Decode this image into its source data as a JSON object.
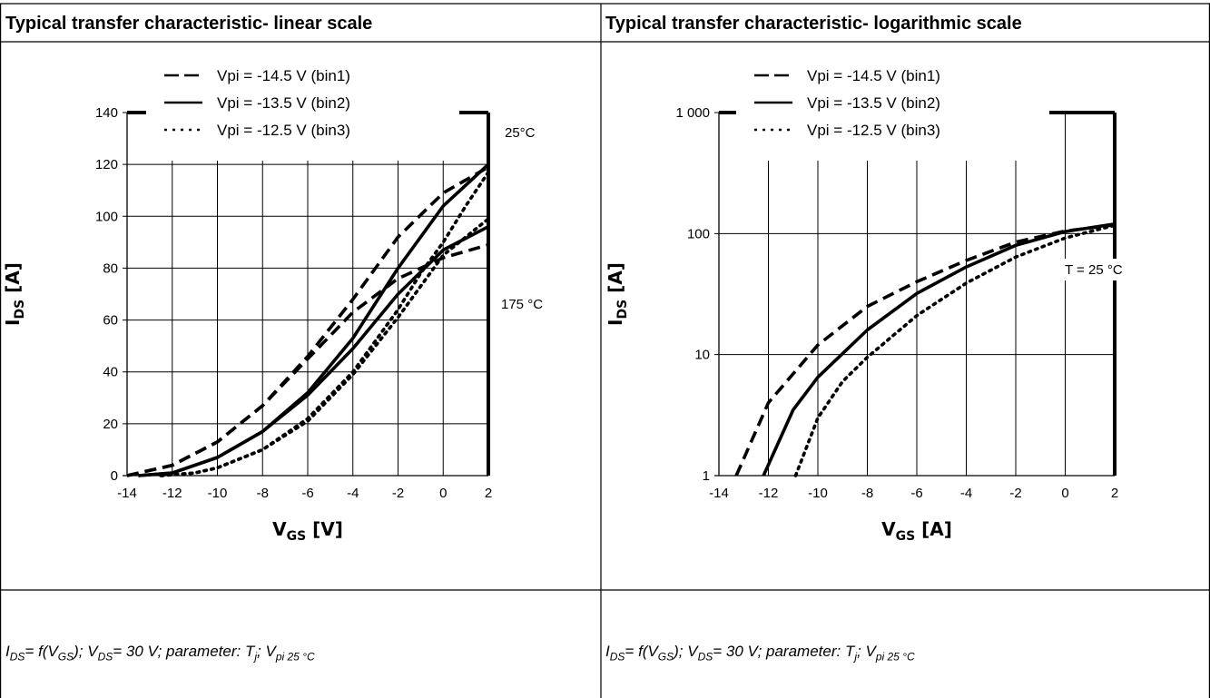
{
  "table": {
    "left_title": "Typical transfer characteristic- linear scale",
    "right_title": "Typical transfer characteristic- logarithmic scale",
    "caption": {
      "i": "I",
      "i_sub": "DS",
      "eq": "= ",
      "f": "f",
      "open": "(V",
      "gs_sub": "GS",
      "mid": "); V",
      "ds_sub": "DS",
      "tail": "= 30 V; parameter: T",
      "j_sub": "j",
      "sep": "; V",
      "vpi_sub": "pi 25 °C"
    }
  },
  "chart_data": [
    {
      "type": "line",
      "title": "Typical transfer characteristic- linear scale",
      "xlabel": "VGS [V]",
      "ylabel": "IDS [A]",
      "xlabel_parts": {
        "main": "V",
        "sub": "GS",
        "unit": " [V]"
      },
      "ylabel_parts": {
        "main": "I",
        "sub": "DS",
        "unit": " [A]"
      },
      "xlim": [
        -14,
        2
      ],
      "ylim": [
        0,
        140
      ],
      "xticks": [
        -14,
        -12,
        -10,
        -8,
        -6,
        -4,
        -2,
        0,
        2
      ],
      "yticks": [
        0,
        20,
        40,
        60,
        80,
        100,
        120,
        140
      ],
      "grid": true,
      "legend_position": "top",
      "legend": [
        {
          "label": "Vpi =  -14.5 V (bin1)",
          "style": "dashed"
        },
        {
          "label": "Vpi =  -13.5 V (bin2)",
          "style": "solid"
        },
        {
          "label": "Vpi =  -12.5 V (bin3)",
          "style": "dotted"
        }
      ],
      "annotations": [
        "25°C",
        "175 °C"
      ],
      "series": [
        {
          "name": "Vpi =  -14.5 V (bin1)",
          "style": "dashed",
          "temperature": "25°C",
          "x": [
            -14,
            -12,
            -10,
            -8,
            -6,
            -4,
            -2,
            0,
            2
          ],
          "y": [
            0,
            4,
            13,
            27,
            46,
            68,
            92,
            109,
            119
          ]
        },
        {
          "name": "Vpi =  -13.5 V (bin2)",
          "style": "solid",
          "temperature": "25°C",
          "x": [
            -13.5,
            -12,
            -10,
            -8,
            -6,
            -4,
            -2,
            0,
            2
          ],
          "y": [
            0,
            1,
            7,
            17,
            32,
            53,
            80,
            104,
            120
          ]
        },
        {
          "name": "Vpi =  -12.5 V (bin3)",
          "style": "dotted",
          "temperature": "25°C",
          "x": [
            -12.5,
            -11,
            -10,
            -8,
            -6,
            -4,
            -2,
            -1,
            0,
            1,
            2
          ],
          "y": [
            0,
            1,
            3,
            10,
            22,
            40,
            64,
            78,
            90,
            104,
            117
          ]
        },
        {
          "name": "Vpi =  -14.5 V (bin1)",
          "style": "dashed",
          "temperature": "175 °C",
          "x": [
            -14,
            -12,
            -10,
            -8,
            -6,
            -4,
            -2,
            0,
            2
          ],
          "y": [
            0,
            4,
            13,
            27,
            45,
            63,
            76,
            84,
            89
          ]
        },
        {
          "name": "Vpi =  -13.5 V (bin2)",
          "style": "solid",
          "temperature": "175 °C",
          "x": [
            -13.5,
            -12,
            -10,
            -8,
            -6,
            -4,
            -2,
            0,
            2
          ],
          "y": [
            0,
            1,
            7,
            17,
            31,
            49,
            70,
            87,
            96
          ]
        },
        {
          "name": "Vpi =  -12.5 V (bin3)",
          "style": "dotted",
          "temperature": "175 °C",
          "x": [
            -12.5,
            -11,
            -10,
            -8,
            -6,
            -4,
            -2,
            0,
            2
          ],
          "y": [
            0,
            1,
            3,
            10,
            21,
            39,
            61,
            85,
            99
          ]
        }
      ]
    },
    {
      "type": "line",
      "title": "Typical transfer characteristic- logarithmic scale",
      "xlabel": "VGS [A]",
      "ylabel": "IDS [A]",
      "xlabel_parts": {
        "main": "V",
        "sub": "GS",
        "unit": " [A]"
      },
      "ylabel_parts": {
        "main": "I",
        "sub": "DS",
        "unit": " [A]"
      },
      "xlim": [
        -14,
        2
      ],
      "ylim": [
        1,
        1000
      ],
      "yscale": "log",
      "xticks": [
        -14,
        -12,
        -10,
        -8,
        -6,
        -4,
        -2,
        0,
        2
      ],
      "yticks": [
        1,
        10,
        100,
        1000
      ],
      "ytick_labels": [
        "1",
        "10",
        "100",
        "1 000"
      ],
      "grid": true,
      "legend_position": "top",
      "legend": [
        {
          "label": "Vpi =  -14.5 V (bin1)",
          "style": "dashed"
        },
        {
          "label": "Vpi =  -13.5 V (bin2)",
          "style": "solid"
        },
        {
          "label": "Vpi =  -12.5 V (bin3)",
          "style": "dotted"
        }
      ],
      "annotations": [
        "T = 25 °C"
      ],
      "series": [
        {
          "name": "Vpi =  -14.5 V (bin1)",
          "style": "dashed",
          "x": [
            -13.3,
            -12,
            -10,
            -8,
            -6,
            -4,
            -2,
            0,
            2
          ],
          "y": [
            1,
            4,
            12,
            25,
            40,
            60,
            85,
            105,
            118
          ]
        },
        {
          "name": "Vpi =  -13.5 V (bin2)",
          "style": "solid",
          "x": [
            -12.2,
            -11,
            -10,
            -8,
            -6,
            -4,
            -2,
            0,
            2
          ],
          "y": [
            1,
            3.5,
            6.5,
            16,
            32,
            53,
            80,
            104,
            120
          ]
        },
        {
          "name": "Vpi =  -12.5 V (bin3)",
          "style": "dotted",
          "x": [
            -10.9,
            -10,
            -9,
            -8,
            -6,
            -4,
            -2,
            0,
            2
          ],
          "y": [
            1,
            3,
            6,
            9.5,
            21,
            39,
            64,
            92,
            117
          ]
        }
      ]
    }
  ]
}
